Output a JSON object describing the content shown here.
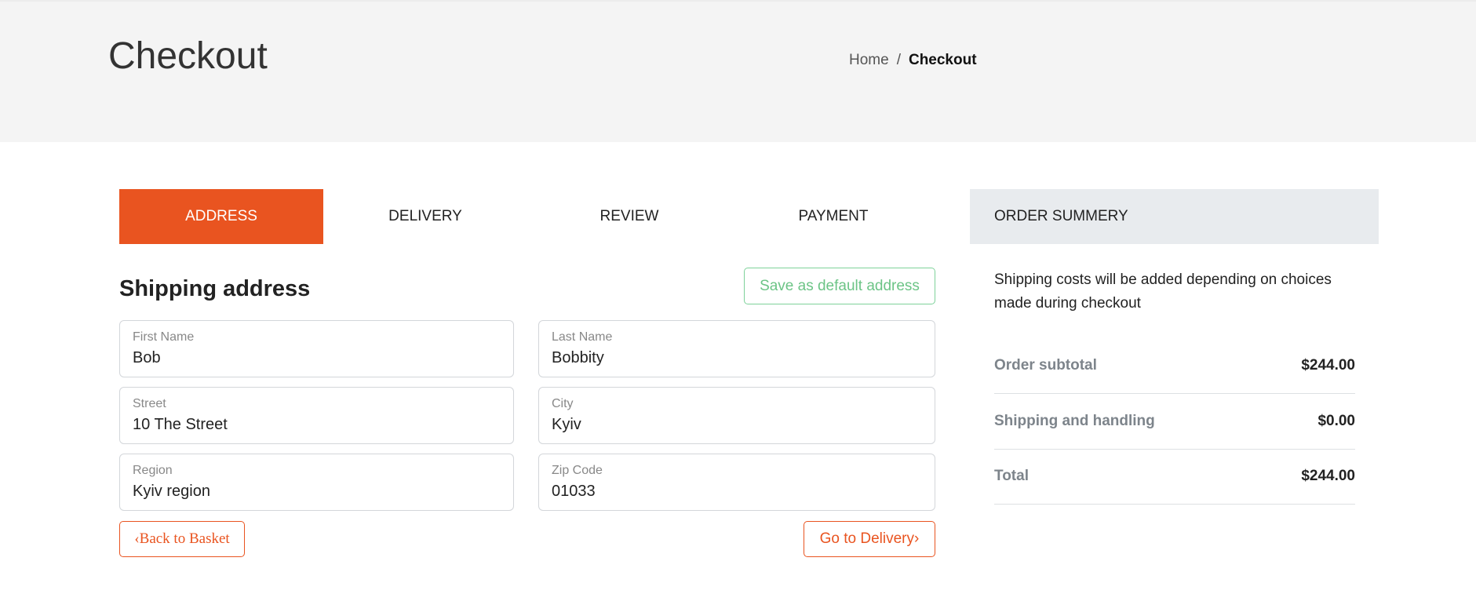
{
  "header": {
    "title": "Checkout",
    "breadcrumb": {
      "home": "Home",
      "separator": "/",
      "current": "Checkout"
    }
  },
  "tabs": [
    {
      "label": "ADDRESS",
      "active": true
    },
    {
      "label": "DELIVERY"
    },
    {
      "label": "REVIEW"
    },
    {
      "label": "PAYMENT"
    }
  ],
  "form": {
    "heading": "Shipping address",
    "save_default_label": "Save as default address",
    "fields": [
      {
        "label": "First Name",
        "value": "Bob"
      },
      {
        "label": "Last Name",
        "value": "Bobbity"
      },
      {
        "label": "Street",
        "value": "10 The Street"
      },
      {
        "label": "City",
        "value": "Kyiv"
      },
      {
        "label": "Region",
        "value": "Kyiv region"
      },
      {
        "label": "Zip Code",
        "value": "01033"
      }
    ],
    "back_label": "‹Back to Basket",
    "next_label": "Go to Delivery›"
  },
  "summary": {
    "title": "ORDER SUMMERY",
    "note": "Shipping costs will be added depending on choices made during checkout",
    "rows": [
      {
        "label": "Order subtotal",
        "value": "$244.00"
      },
      {
        "label": "Shipping and handling",
        "value": "$0.00"
      },
      {
        "label": "Total",
        "value": "$244.00"
      }
    ]
  },
  "colors": {
    "accent": "#e95420",
    "success": "#6cc486",
    "summary_bg": "#e8ebee"
  }
}
